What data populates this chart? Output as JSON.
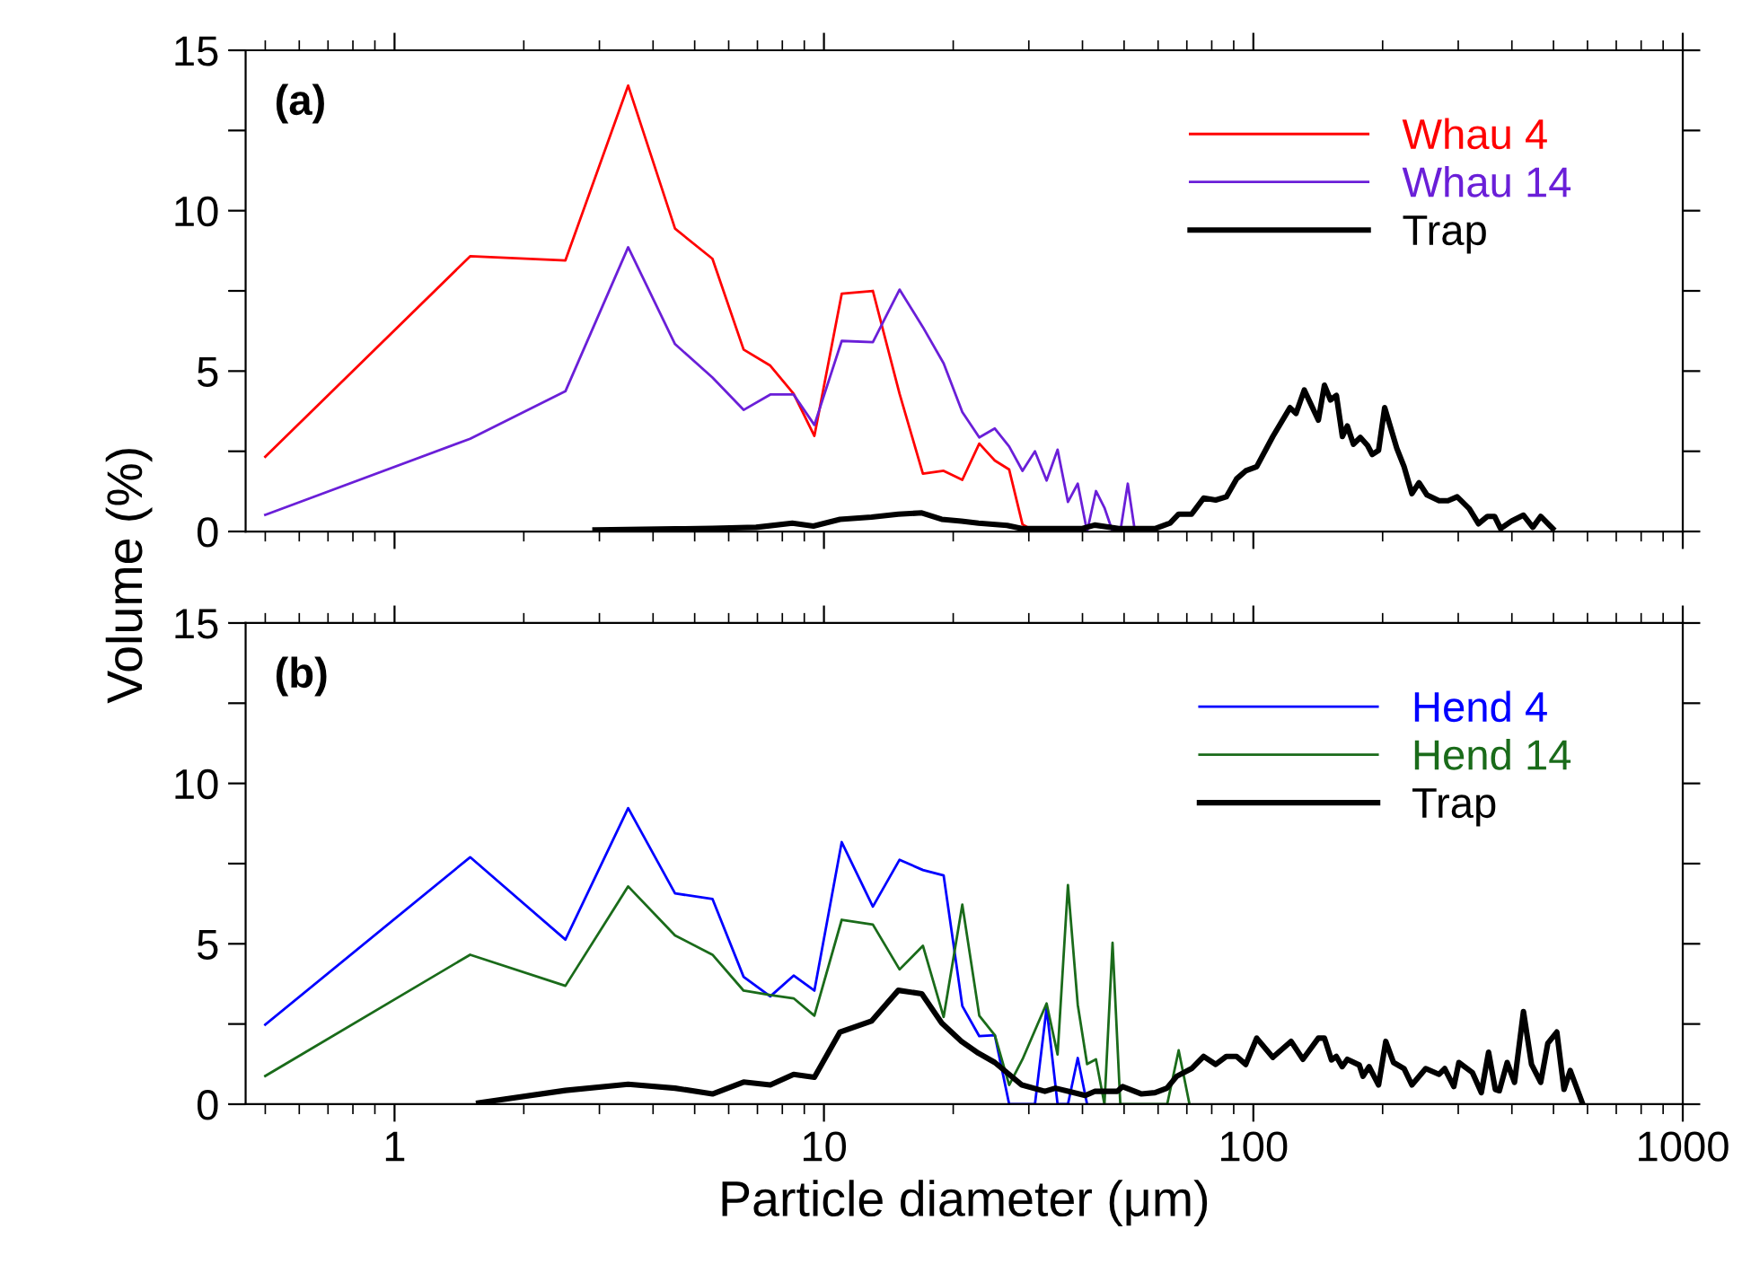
{
  "chart_data": [
    {
      "type": "line",
      "ylabel": "Volume (%)",
      "annotations": [
        "(a)"
      ],
      "log": "x",
      "xlim": [
        0.45,
        1000
      ],
      "xticks": [
        1,
        10,
        100,
        1000
      ],
      "ylim": [
        0,
        15
      ],
      "yticks": [
        0,
        {
          "value": 2.5,
          "label": null
        },
        5,
        {
          "value": 7.5,
          "label": null
        },
        10,
        {
          "value": 12.5,
          "label": null
        },
        15
      ],
      "tick_labels": "y",
      "grid": false,
      "legend": "top right",
      "marker": "none",
      "line_style": "solid",
      "series": [
        {
          "name": "Whau 4",
          "color": "#ff0000",
          "x": [
            0.5,
            1.5,
            2.5,
            3.5,
            4.5,
            5.5,
            6.5,
            7.5,
            8.5,
            9.5,
            11,
            13,
            15,
            17,
            19,
            21,
            23,
            25,
            27,
            29,
            31
          ],
          "values": [
            2.33,
            8.58,
            8.45,
            13.9,
            9.44,
            8.5,
            5.67,
            5.17,
            4.29,
            2.98,
            7.41,
            7.5,
            4.29,
            1.8,
            1.89,
            1.61,
            2.74,
            2.21,
            1.93,
            0.22,
            0
          ]
        },
        {
          "name": "Whau 14",
          "color": "#6a1fd8",
          "x": [
            0.5,
            1.5,
            2.5,
            3.5,
            4.5,
            5.5,
            6.5,
            7.5,
            8.5,
            9.5,
            11,
            13,
            15,
            17,
            19,
            21,
            23,
            25,
            27,
            29,
            31,
            33,
            35,
            37,
            39,
            41,
            43,
            45,
            47,
            49,
            51,
            53
          ],
          "values": [
            0.52,
            2.89,
            4.37,
            8.86,
            5.84,
            4.8,
            3.79,
            4.27,
            4.27,
            3.32,
            5.94,
            5.9,
            7.54,
            6.37,
            5.24,
            3.72,
            2.93,
            3.21,
            2.65,
            1.89,
            2.5,
            1.59,
            2.55,
            0.92,
            1.49,
            0,
            1.26,
            0.74,
            0,
            0,
            1.49,
            0
          ]
        },
        {
          "name": "Trap",
          "color": "#000000",
          "x": [
            2.93,
            4.5,
            5.5,
            6.95,
            8.44,
            9.45,
            10.9,
            12.9,
            14.9,
            16.9,
            18.8,
            20.9,
            22.9,
            26.7,
            28.9,
            40,
            42.7,
            48.6,
            59,
            64,
            67,
            71.8,
            76.6,
            81.7,
            86.5,
            91.4,
            96,
            101.8,
            111,
            121.7,
            125.7,
            131.4,
            141.7,
            146.4,
            151.2,
            156.1,
            161.2,
            165.5,
            171,
            177.5,
            184.5,
            189.2,
            195.7,
            202.2,
            215.8,
            224.4,
            234,
            243.1,
            253.6,
            270.7,
            284,
            298.3,
            318.3,
            334.4,
            351,
            364.5,
            376.6,
            399,
            425.6,
            447.5,
            466.8,
            498
          ],
          "values": [
            0.05,
            0.08,
            0.1,
            0.13,
            0.26,
            0.17,
            0.38,
            0.45,
            0.54,
            0.58,
            0.38,
            0.32,
            0.26,
            0.19,
            0.09,
            0.09,
            0.2,
            0.09,
            0.09,
            0.26,
            0.54,
            0.54,
            1.04,
            0.98,
            1.08,
            1.64,
            1.89,
            2.02,
            2.96,
            3.86,
            3.68,
            4.41,
            3.47,
            4.56,
            4.1,
            4.24,
            2.96,
            3.29,
            2.72,
            2.93,
            2.68,
            2.4,
            2.53,
            3.86,
            2.59,
            2.02,
            1.18,
            1.52,
            1.14,
            0.96,
            0.96,
            1.08,
            0.71,
            0.24,
            0.47,
            0.47,
            0.09,
            0.32,
            0.51,
            0.13,
            0.47,
            0.09
          ]
        }
      ]
    },
    {
      "type": "line",
      "xlabel": "Particle diameter (μm)",
      "annotations": [
        "(b)"
      ],
      "log": "x",
      "xlim": [
        0.45,
        1000
      ],
      "xticks": [
        1,
        10,
        100,
        1000
      ],
      "ylim": [
        0,
        15
      ],
      "yticks": [
        0,
        {
          "value": 2.5,
          "label": null
        },
        5,
        {
          "value": 7.5,
          "label": null
        },
        10,
        {
          "value": 12.5,
          "label": null
        },
        15
      ],
      "grid": false,
      "legend": "top right",
      "marker": "none",
      "line_style": "solid",
      "series": [
        {
          "name": "Hend 4",
          "color": "#0000ff",
          "x": [
            0.5,
            1.5,
            2.5,
            3.5,
            4.5,
            5.5,
            6.5,
            7.5,
            8.5,
            9.5,
            11,
            13,
            15,
            17,
            19,
            21,
            23,
            25,
            27,
            29,
            31,
            33,
            35,
            37,
            39,
            41
          ],
          "values": [
            2.48,
            7.7,
            5.13,
            9.23,
            6.57,
            6.4,
            3.97,
            3.36,
            4.01,
            3.54,
            8.17,
            6.16,
            7.62,
            7.3,
            7.13,
            3.06,
            2.12,
            2.15,
            0,
            0,
            0,
            3.0,
            0,
            0,
            1.44,
            0
          ]
        },
        {
          "name": "Hend 14",
          "color": "#1a6b1a",
          "x": [
            0.5,
            1.5,
            2.5,
            3.5,
            4.5,
            5.5,
            6.5,
            7.5,
            8.5,
            9.5,
            11,
            13,
            15,
            17,
            19,
            21,
            23,
            25,
            27,
            29,
            31,
            33,
            35,
            37,
            39,
            41,
            43,
            45,
            47,
            49,
            63,
            67,
            71
          ],
          "values": [
            0.88,
            4.66,
            3.69,
            6.79,
            5.26,
            4.66,
            3.54,
            3.4,
            3.3,
            2.76,
            5.75,
            5.6,
            4.2,
            4.94,
            2.72,
            6.22,
            2.76,
            2.15,
            0.6,
            1.4,
            2.3,
            3.14,
            1.55,
            6.83,
            3.1,
            1.25,
            1.4,
            0,
            5.03,
            0,
            0,
            1.68,
            0
          ]
        },
        {
          "name": "Trap",
          "color": "#000000",
          "x": [
            1.57,
            2.5,
            3.5,
            4.5,
            5.5,
            6.5,
            7.5,
            8.5,
            9.5,
            10.9,
            12.9,
            14.9,
            16.9,
            18.8,
            20.9,
            22.9,
            25,
            28.9,
            32.7,
            34.6,
            37.2,
            40.6,
            42.7,
            45.2,
            48.2,
            49.6,
            54.9,
            59,
            62.9,
            66.3,
            71.8,
            76.6,
            81.7,
            86.5,
            91.4,
            96,
            101.8,
            111,
            122.4,
            130.4,
            141.7,
            146.4,
            152,
            156,
            161,
            165.5,
            176.5,
            180,
            186,
            195.7,
            203.4,
            212,
            224.4,
            234,
            252,
            270.7,
            279,
            293,
            301,
            323.5,
            339.5,
            353,
            366,
            374,
            390,
            405.7,
            425.6,
            444.4,
            466.8,
            485,
            509,
            529,
            547,
            585
          ],
          "values": [
            0.04,
            0.43,
            0.62,
            0.5,
            0.32,
            0.69,
            0.6,
            0.93,
            0.84,
            2.25,
            2.59,
            3.55,
            3.44,
            2.53,
            1.96,
            1.59,
            1.3,
            0.6,
            0.4,
            0.5,
            0.4,
            0.27,
            0.4,
            0.4,
            0.4,
            0.55,
            0.32,
            0.36,
            0.5,
            0.87,
            1.11,
            1.49,
            1.24,
            1.49,
            1.49,
            1.24,
            2.06,
            1.46,
            1.96,
            1.4,
            2.06,
            2.06,
            1.38,
            1.49,
            1.17,
            1.4,
            1.22,
            0.87,
            1.17,
            0.6,
            1.96,
            1.3,
            1.11,
            0.6,
            1.11,
            0.93,
            1.11,
            0.55,
            1.3,
            0.99,
            0.36,
            1.62,
            0.46,
            0.42,
            1.3,
            0.68,
            2.89,
            1.24,
            0.68,
            1.9,
            2.25,
            0.46,
            1.05,
            0
          ]
        }
      ]
    }
  ]
}
